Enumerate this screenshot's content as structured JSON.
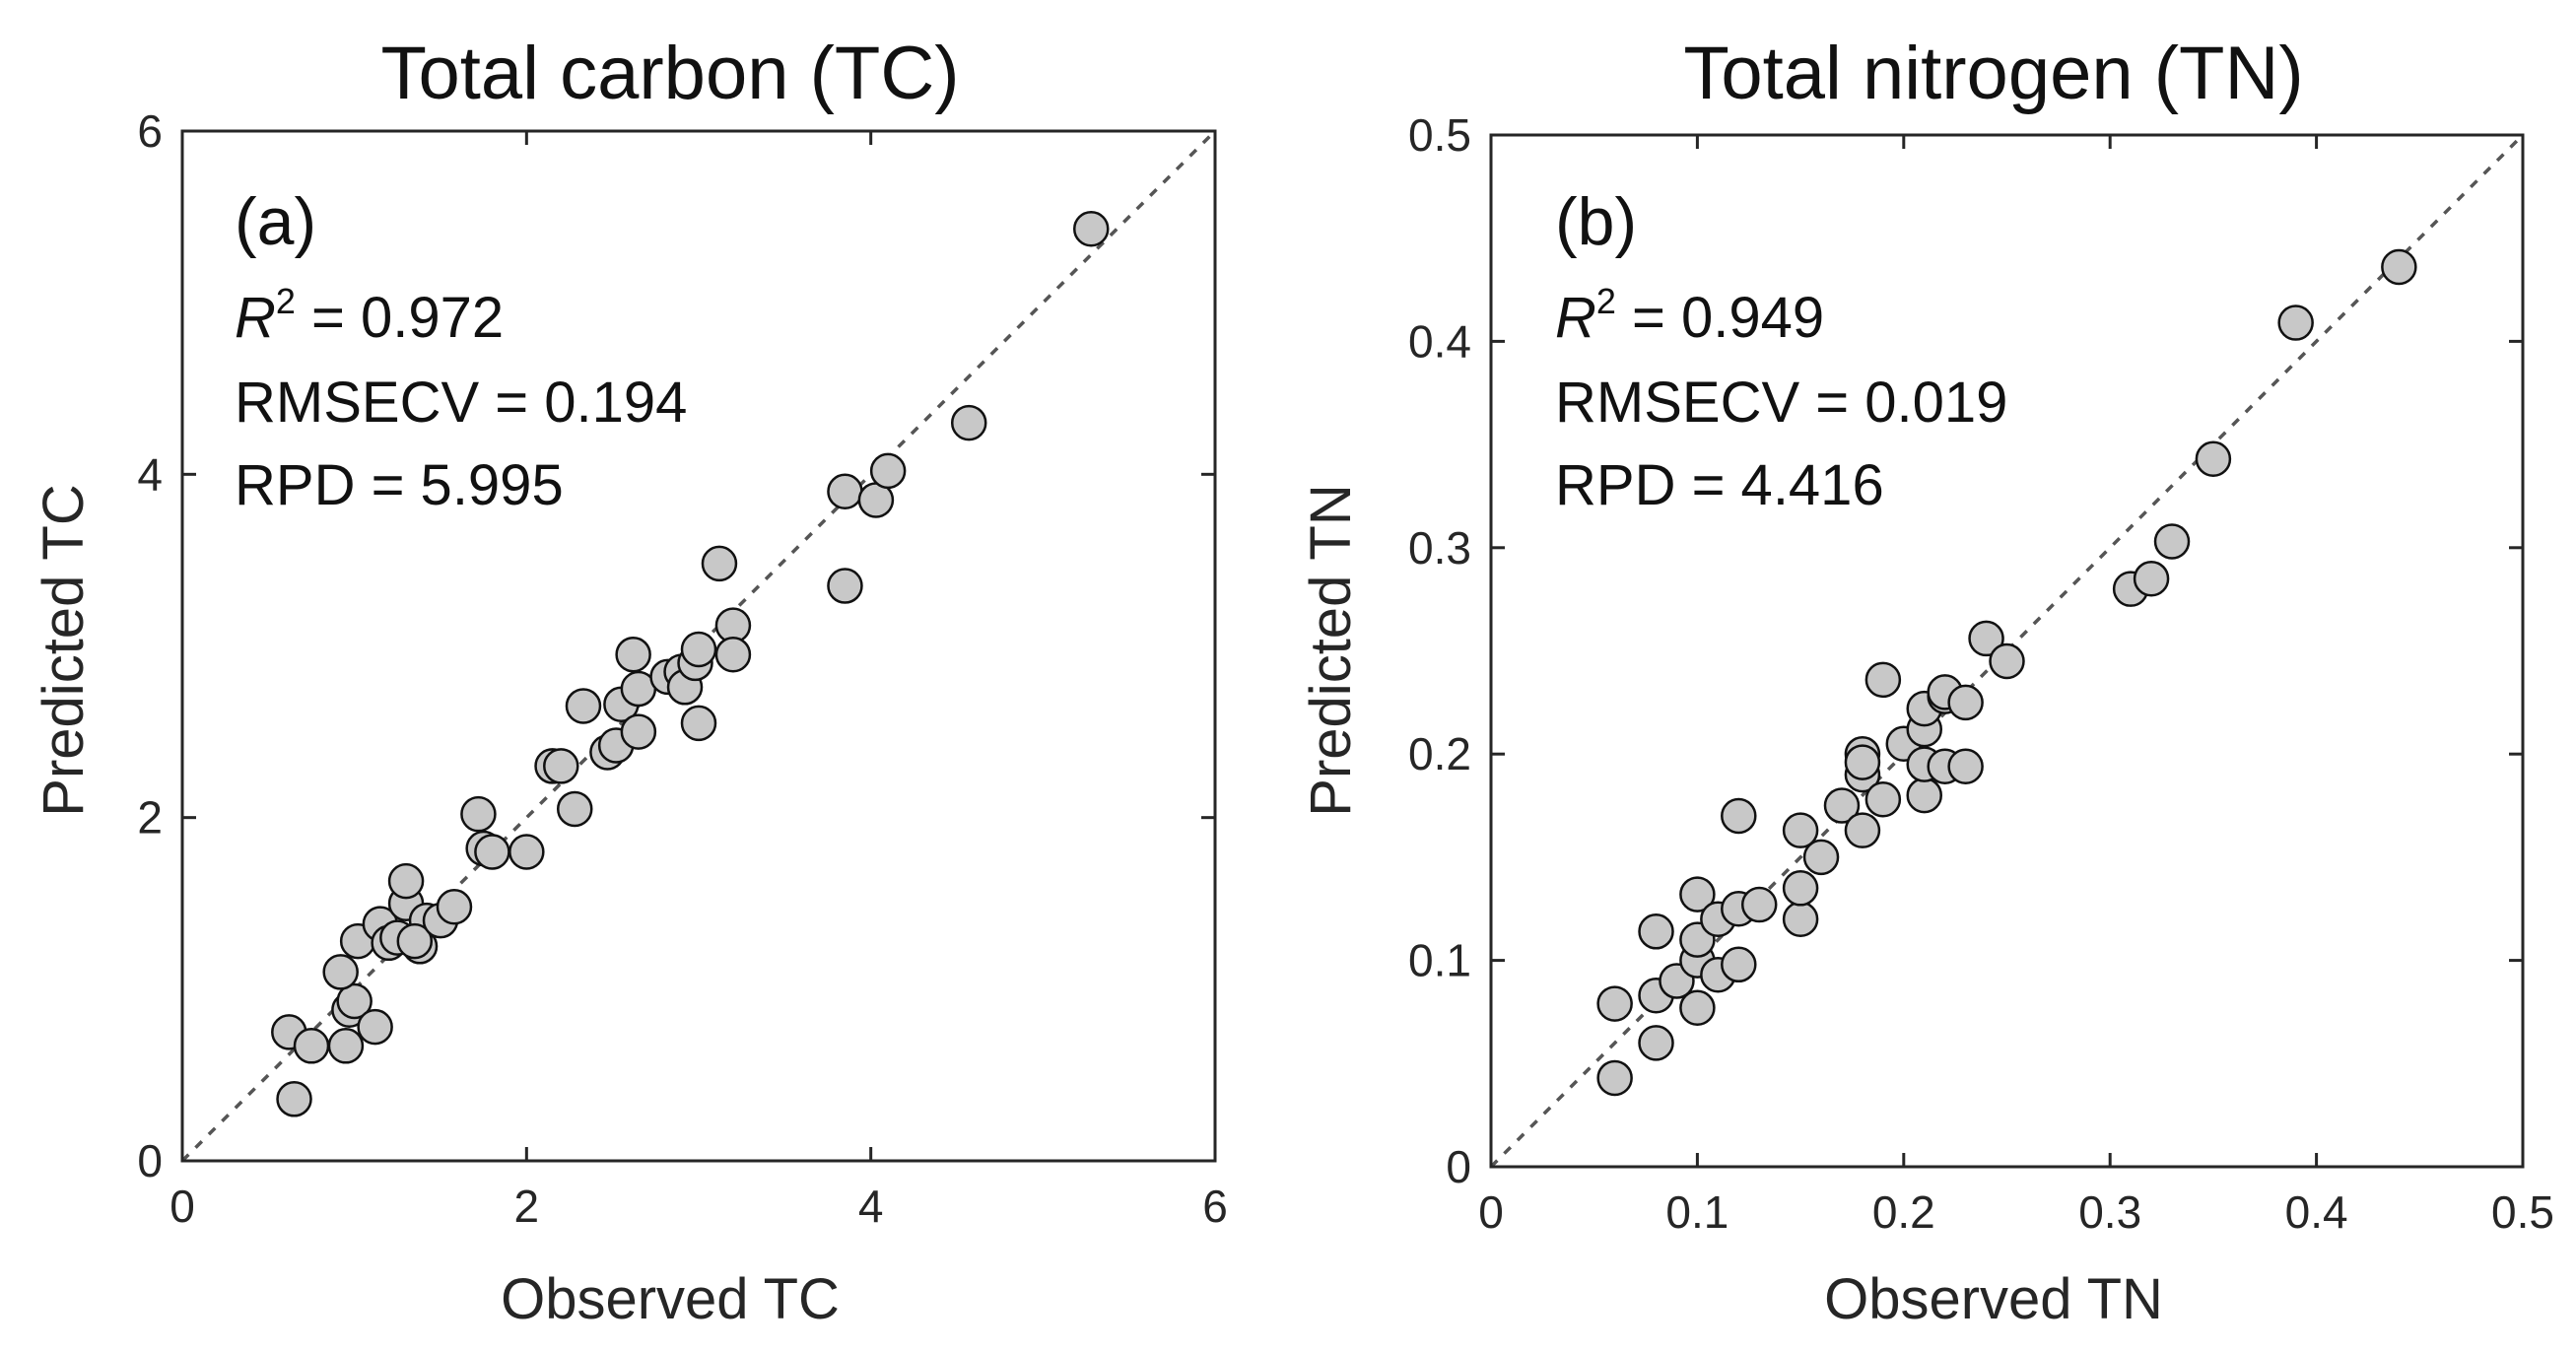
{
  "chart_data": [
    {
      "type": "scatter",
      "title": "Total carbon (TC)",
      "xlabel": "Observed TC",
      "ylabel": "Predicted TC",
      "xlim": [
        0,
        6
      ],
      "ylim": [
        0,
        6
      ],
      "xticks": [
        0,
        2,
        4,
        6
      ],
      "yticks": [
        0,
        2,
        4,
        6
      ],
      "xtick_labels": [
        "0",
        "2",
        "4",
        "6"
      ],
      "ytick_labels": [
        "0",
        "2",
        "4",
        "6"
      ],
      "panel_label": "(a)",
      "reference_line": "1:1 dashed",
      "stats": {
        "r2_symbol": "R",
        "r2_sup": "2",
        "r2_text": " = 0.972",
        "rmsecv": "RMSECV = 0.194",
        "rpd": "RPD = 5.995"
      },
      "colors": {
        "marker_fill": "#c8c8c8",
        "marker_edge": "#111111",
        "line": "#555555"
      },
      "points": [
        {
          "x": 0.65,
          "y": 0.36
        },
        {
          "x": 0.62,
          "y": 0.75
        },
        {
          "x": 0.75,
          "y": 0.67
        },
        {
          "x": 0.95,
          "y": 0.67
        },
        {
          "x": 0.97,
          "y": 0.88
        },
        {
          "x": 1.0,
          "y": 0.93
        },
        {
          "x": 1.12,
          "y": 0.78
        },
        {
          "x": 0.92,
          "y": 1.1
        },
        {
          "x": 1.02,
          "y": 1.28
        },
        {
          "x": 1.15,
          "y": 1.38
        },
        {
          "x": 1.2,
          "y": 1.27
        },
        {
          "x": 1.25,
          "y": 1.3
        },
        {
          "x": 1.3,
          "y": 1.5
        },
        {
          "x": 1.3,
          "y": 1.63
        },
        {
          "x": 1.38,
          "y": 1.25
        },
        {
          "x": 1.42,
          "y": 1.4
        },
        {
          "x": 1.35,
          "y": 1.28
        },
        {
          "x": 1.5,
          "y": 1.4
        },
        {
          "x": 1.58,
          "y": 1.48
        },
        {
          "x": 1.72,
          "y": 2.02
        },
        {
          "x": 1.75,
          "y": 1.82
        },
        {
          "x": 1.8,
          "y": 1.8
        },
        {
          "x": 2.0,
          "y": 1.8
        },
        {
          "x": 2.15,
          "y": 2.3
        },
        {
          "x": 2.2,
          "y": 2.3
        },
        {
          "x": 2.28,
          "y": 2.05
        },
        {
          "x": 2.33,
          "y": 2.65
        },
        {
          "x": 2.47,
          "y": 2.38
        },
        {
          "x": 2.52,
          "y": 2.42
        },
        {
          "x": 2.55,
          "y": 2.66
        },
        {
          "x": 2.62,
          "y": 2.95
        },
        {
          "x": 2.65,
          "y": 2.75
        },
        {
          "x": 2.65,
          "y": 2.5
        },
        {
          "x": 2.82,
          "y": 2.82
        },
        {
          "x": 2.9,
          "y": 2.85
        },
        {
          "x": 2.92,
          "y": 2.76
        },
        {
          "x": 2.98,
          "y": 2.9
        },
        {
          "x": 3.0,
          "y": 2.98
        },
        {
          "x": 3.0,
          "y": 2.55
        },
        {
          "x": 3.12,
          "y": 3.48
        },
        {
          "x": 3.2,
          "y": 3.12
        },
        {
          "x": 3.2,
          "y": 2.95
        },
        {
          "x": 3.85,
          "y": 3.9
        },
        {
          "x": 3.85,
          "y": 3.35
        },
        {
          "x": 4.03,
          "y": 3.85
        },
        {
          "x": 4.1,
          "y": 4.02
        },
        {
          "x": 4.57,
          "y": 4.3
        },
        {
          "x": 5.28,
          "y": 5.43
        }
      ]
    },
    {
      "type": "scatter",
      "title": "Total nitrogen (TN)",
      "xlabel": "Observed TN",
      "ylabel": "Predicted TN",
      "xlim": [
        0,
        0.5
      ],
      "ylim": [
        0,
        0.5
      ],
      "xticks": [
        0,
        0.1,
        0.2,
        0.3,
        0.4,
        0.5
      ],
      "yticks": [
        0,
        0.1,
        0.2,
        0.3,
        0.4,
        0.5
      ],
      "xtick_labels": [
        "0",
        "0.1",
        "0.2",
        "0.3",
        "0.4",
        "0.5"
      ],
      "ytick_labels": [
        "0",
        "0.1",
        "0.2",
        "0.3",
        "0.4",
        "0.5"
      ],
      "panel_label": "(b)",
      "reference_line": "1:1 dashed",
      "stats": {
        "r2_symbol": "R",
        "r2_sup": "2",
        "r2_text": " = 0.949",
        "rmsecv": "RMSECV = 0.019",
        "rpd": "RPD = 4.416"
      },
      "colors": {
        "marker_fill": "#c8c8c8",
        "marker_edge": "#111111",
        "line": "#555555"
      },
      "points": [
        {
          "x": 0.06,
          "y": 0.043
        },
        {
          "x": 0.06,
          "y": 0.079
        },
        {
          "x": 0.08,
          "y": 0.06
        },
        {
          "x": 0.08,
          "y": 0.083
        },
        {
          "x": 0.08,
          "y": 0.114
        },
        {
          "x": 0.09,
          "y": 0.09
        },
        {
          "x": 0.1,
          "y": 0.077
        },
        {
          "x": 0.1,
          "y": 0.1
        },
        {
          "x": 0.1,
          "y": 0.11
        },
        {
          "x": 0.1,
          "y": 0.132
        },
        {
          "x": 0.11,
          "y": 0.093
        },
        {
          "x": 0.11,
          "y": 0.12
        },
        {
          "x": 0.12,
          "y": 0.098
        },
        {
          "x": 0.12,
          "y": 0.125
        },
        {
          "x": 0.12,
          "y": 0.17
        },
        {
          "x": 0.13,
          "y": 0.127
        },
        {
          "x": 0.15,
          "y": 0.12
        },
        {
          "x": 0.15,
          "y": 0.135
        },
        {
          "x": 0.15,
          "y": 0.163
        },
        {
          "x": 0.16,
          "y": 0.15
        },
        {
          "x": 0.17,
          "y": 0.175
        },
        {
          "x": 0.18,
          "y": 0.163
        },
        {
          "x": 0.18,
          "y": 0.19
        },
        {
          "x": 0.18,
          "y": 0.2
        },
        {
          "x": 0.18,
          "y": 0.196
        },
        {
          "x": 0.19,
          "y": 0.178
        },
        {
          "x": 0.19,
          "y": 0.236
        },
        {
          "x": 0.2,
          "y": 0.205
        },
        {
          "x": 0.21,
          "y": 0.18
        },
        {
          "x": 0.21,
          "y": 0.195
        },
        {
          "x": 0.21,
          "y": 0.212
        },
        {
          "x": 0.21,
          "y": 0.222
        },
        {
          "x": 0.22,
          "y": 0.194
        },
        {
          "x": 0.22,
          "y": 0.228
        },
        {
          "x": 0.22,
          "y": 0.23
        },
        {
          "x": 0.23,
          "y": 0.194
        },
        {
          "x": 0.23,
          "y": 0.225
        },
        {
          "x": 0.24,
          "y": 0.256
        },
        {
          "x": 0.25,
          "y": 0.245
        },
        {
          "x": 0.31,
          "y": 0.28
        },
        {
          "x": 0.32,
          "y": 0.285
        },
        {
          "x": 0.33,
          "y": 0.303
        },
        {
          "x": 0.35,
          "y": 0.343
        },
        {
          "x": 0.39,
          "y": 0.409
        },
        {
          "x": 0.44,
          "y": 0.436
        }
      ]
    }
  ]
}
